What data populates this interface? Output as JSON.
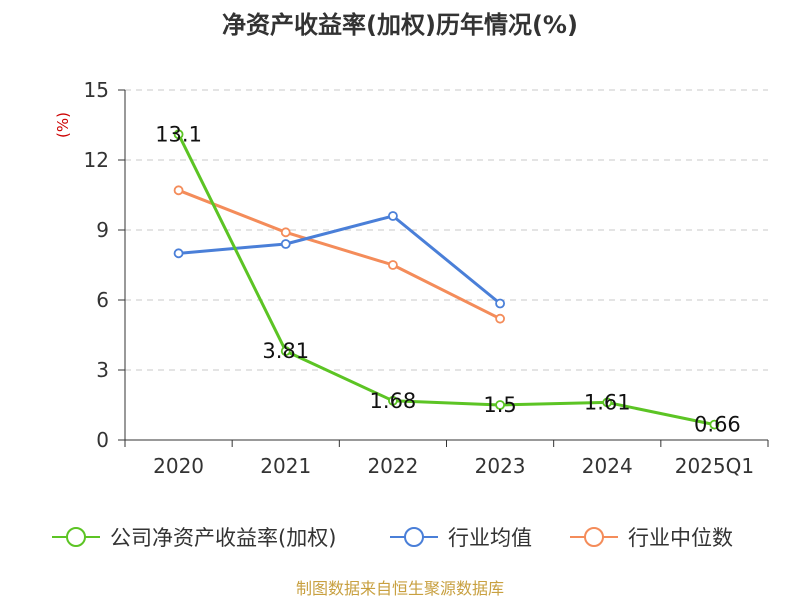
{
  "chart_data": {
    "type": "line",
    "title": "净资产收益率(加权)历年情况(%)",
    "ylabel": "(%)",
    "xlabel": "",
    "categories": [
      "2020",
      "2021",
      "2022",
      "2023",
      "2024",
      "2025Q1"
    ],
    "ylim": [
      0,
      15
    ],
    "yticks": [
      0,
      3,
      6,
      9,
      12,
      15
    ],
    "grid": true,
    "legend_position": "bottom",
    "series": [
      {
        "name": "公司净资产收益率(加权)",
        "color": "#5cc424",
        "values": [
          13.1,
          3.81,
          1.68,
          1.5,
          1.61,
          0.66
        ],
        "labels": [
          "13.1",
          "3.81",
          "1.68",
          "1.5",
          "1.61",
          "0.66"
        ]
      },
      {
        "name": "行业均值",
        "color": "#4a7fd8",
        "values": [
          8.0,
          8.4,
          9.6,
          5.85,
          null,
          null
        ]
      },
      {
        "name": "行业中位数",
        "color": "#f48c5a",
        "values": [
          10.7,
          8.9,
          7.5,
          5.2,
          null,
          null
        ]
      }
    ]
  },
  "source": "制图数据来自恒生聚源数据库"
}
